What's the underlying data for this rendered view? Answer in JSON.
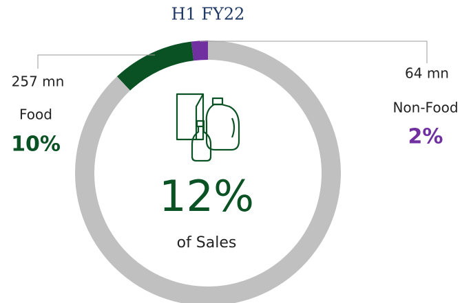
{
  "chart_data": {
    "type": "pie",
    "donut": true,
    "title": "H1 FY22",
    "categories": [
      "Food",
      "Non-Food",
      null
    ],
    "values": [
      10,
      2,
      88
    ],
    "value_labels": [
      "10%",
      "2%",
      null
    ],
    "amounts": [
      257,
      64,
      null
    ],
    "amount_labels": [
      "257 mn",
      "64 mn",
      null
    ],
    "colors": [
      "#0a5223",
      "#7030a0",
      "#c0c0c0"
    ],
    "center": {
      "value": 12,
      "label": "12%",
      "caption": "of Sales"
    }
  }
}
